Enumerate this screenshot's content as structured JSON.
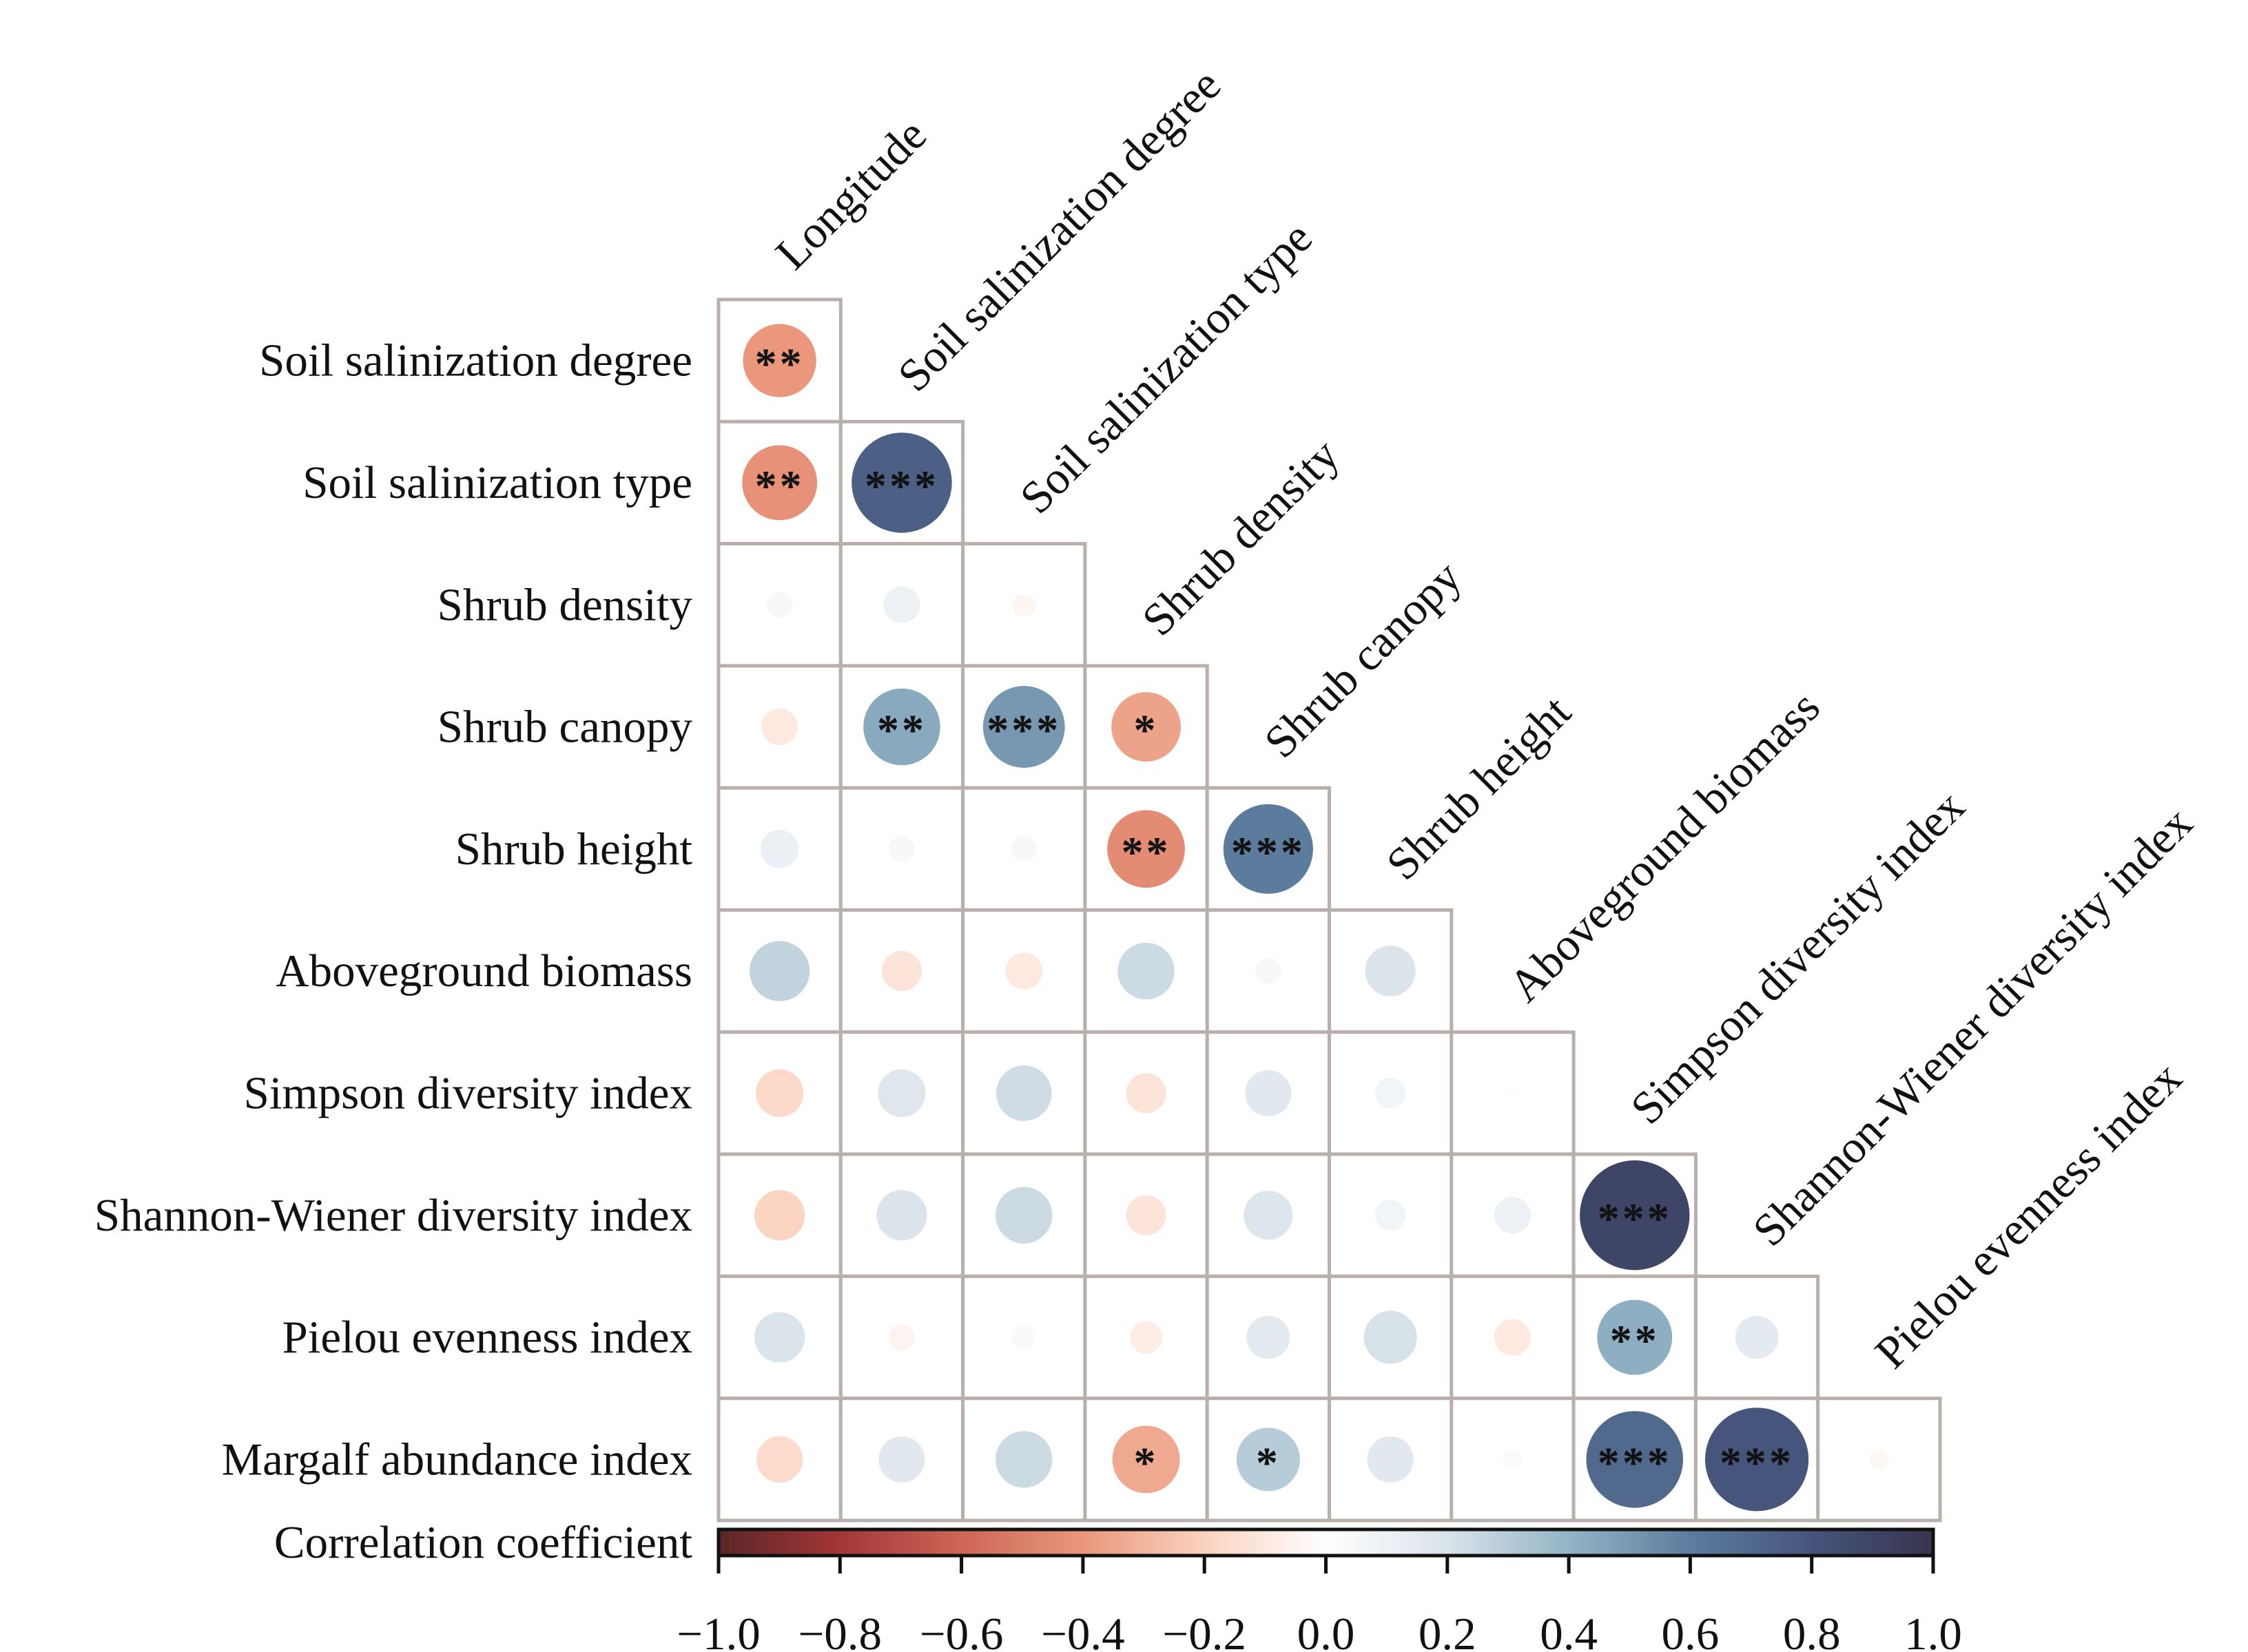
{
  "chart_data": {
    "type": "heatmap",
    "subtype": "correlation-matrix-lower-triangle-circles",
    "title": "",
    "columns": [
      "Longitude",
      "Soil salinization degree",
      "Soil salinization type",
      "Shrub density",
      "Shrub canopy",
      "Shrub height",
      "Aboveground biomass",
      "Simpson diversity index",
      "Shannon-Wiener diversity index",
      "Pielou evenness index"
    ],
    "rows": [
      "Soil salinization degree",
      "Soil salinization type",
      "Shrub density",
      "Shrub canopy",
      "Shrub height",
      "Aboveground biomass",
      "Simpson diversity index",
      "Shannon-Wiener diversity index",
      "Pielou evenness index",
      "Margalf abundance index"
    ],
    "values": [
      [
        -0.4
      ],
      [
        -0.42,
        0.75
      ],
      [
        0.05,
        0.1,
        -0.04
      ],
      [
        -0.1,
        0.44,
        0.5,
        -0.36
      ],
      [
        0.11,
        0.05,
        0.05,
        -0.45,
        0.6
      ],
      [
        0.27,
        -0.12,
        -0.1,
        0.24,
        0.05,
        0.19
      ],
      [
        -0.17,
        0.17,
        0.23,
        -0.12,
        0.16,
        0.07,
        0.01
      ],
      [
        -0.19,
        0.19,
        0.24,
        -0.12,
        0.18,
        0.07,
        0.1,
        0.9
      ],
      [
        0.19,
        -0.05,
        0.04,
        -0.08,
        0.14,
        0.21,
        -0.1,
        0.42,
        0.14
      ],
      [
        -0.16,
        0.16,
        0.24,
        -0.34,
        0.3,
        0.16,
        0.03,
        0.7,
        0.8,
        -0.03
      ]
    ],
    "significance": [
      [
        "**"
      ],
      [
        "**",
        "***"
      ],
      [
        "",
        "",
        ""
      ],
      [
        "",
        "**",
        "***",
        "*"
      ],
      [
        "",
        "",
        "",
        "**",
        "***"
      ],
      [
        "",
        "",
        "",
        "",
        "",
        ""
      ],
      [
        "",
        "",
        "",
        "",
        "",
        "",
        ""
      ],
      [
        "",
        "",
        "",
        "",
        "",
        "",
        "",
        "***"
      ],
      [
        "",
        "",
        "",
        "",
        "",
        "",
        "",
        "**",
        ""
      ],
      [
        "",
        "",
        "",
        "*",
        "*",
        "",
        "",
        "***",
        "***",
        ""
      ]
    ],
    "colorbar": {
      "label": "Correlation coefficient",
      "range": [
        -1.0,
        1.0
      ],
      "ticks": [
        -1.0,
        -0.8,
        -0.6,
        -0.4,
        -0.2,
        0.0,
        0.2,
        0.4,
        0.6,
        0.8,
        1.0
      ],
      "tick_labels": [
        "−1.0",
        "−0.8",
        "−0.6",
        "−0.4",
        "−0.2",
        "0.0",
        "0.2",
        "0.4",
        "0.6",
        "0.8",
        "1.0"
      ],
      "position": "bottom",
      "colors": [
        {
          "v": -1.0,
          "c": "#5c2626"
        },
        {
          "v": -0.8,
          "c": "#a33638"
        },
        {
          "v": -0.6,
          "c": "#cd6658"
        },
        {
          "v": -0.4,
          "c": "#ea977c"
        },
        {
          "v": -0.2,
          "c": "#fbd2bf"
        },
        {
          "v": 0.0,
          "c": "#ffffff"
        },
        {
          "v": 0.2,
          "c": "#d9e3ea"
        },
        {
          "v": 0.4,
          "c": "#93b4c6"
        },
        {
          "v": 0.6,
          "c": "#5c7c9e"
        },
        {
          "v": 0.8,
          "c": "#46557c"
        },
        {
          "v": 1.0,
          "c": "#38344f"
        }
      ]
    },
    "grid": true,
    "marker": "circle area proportional to |r|, color by r"
  }
}
